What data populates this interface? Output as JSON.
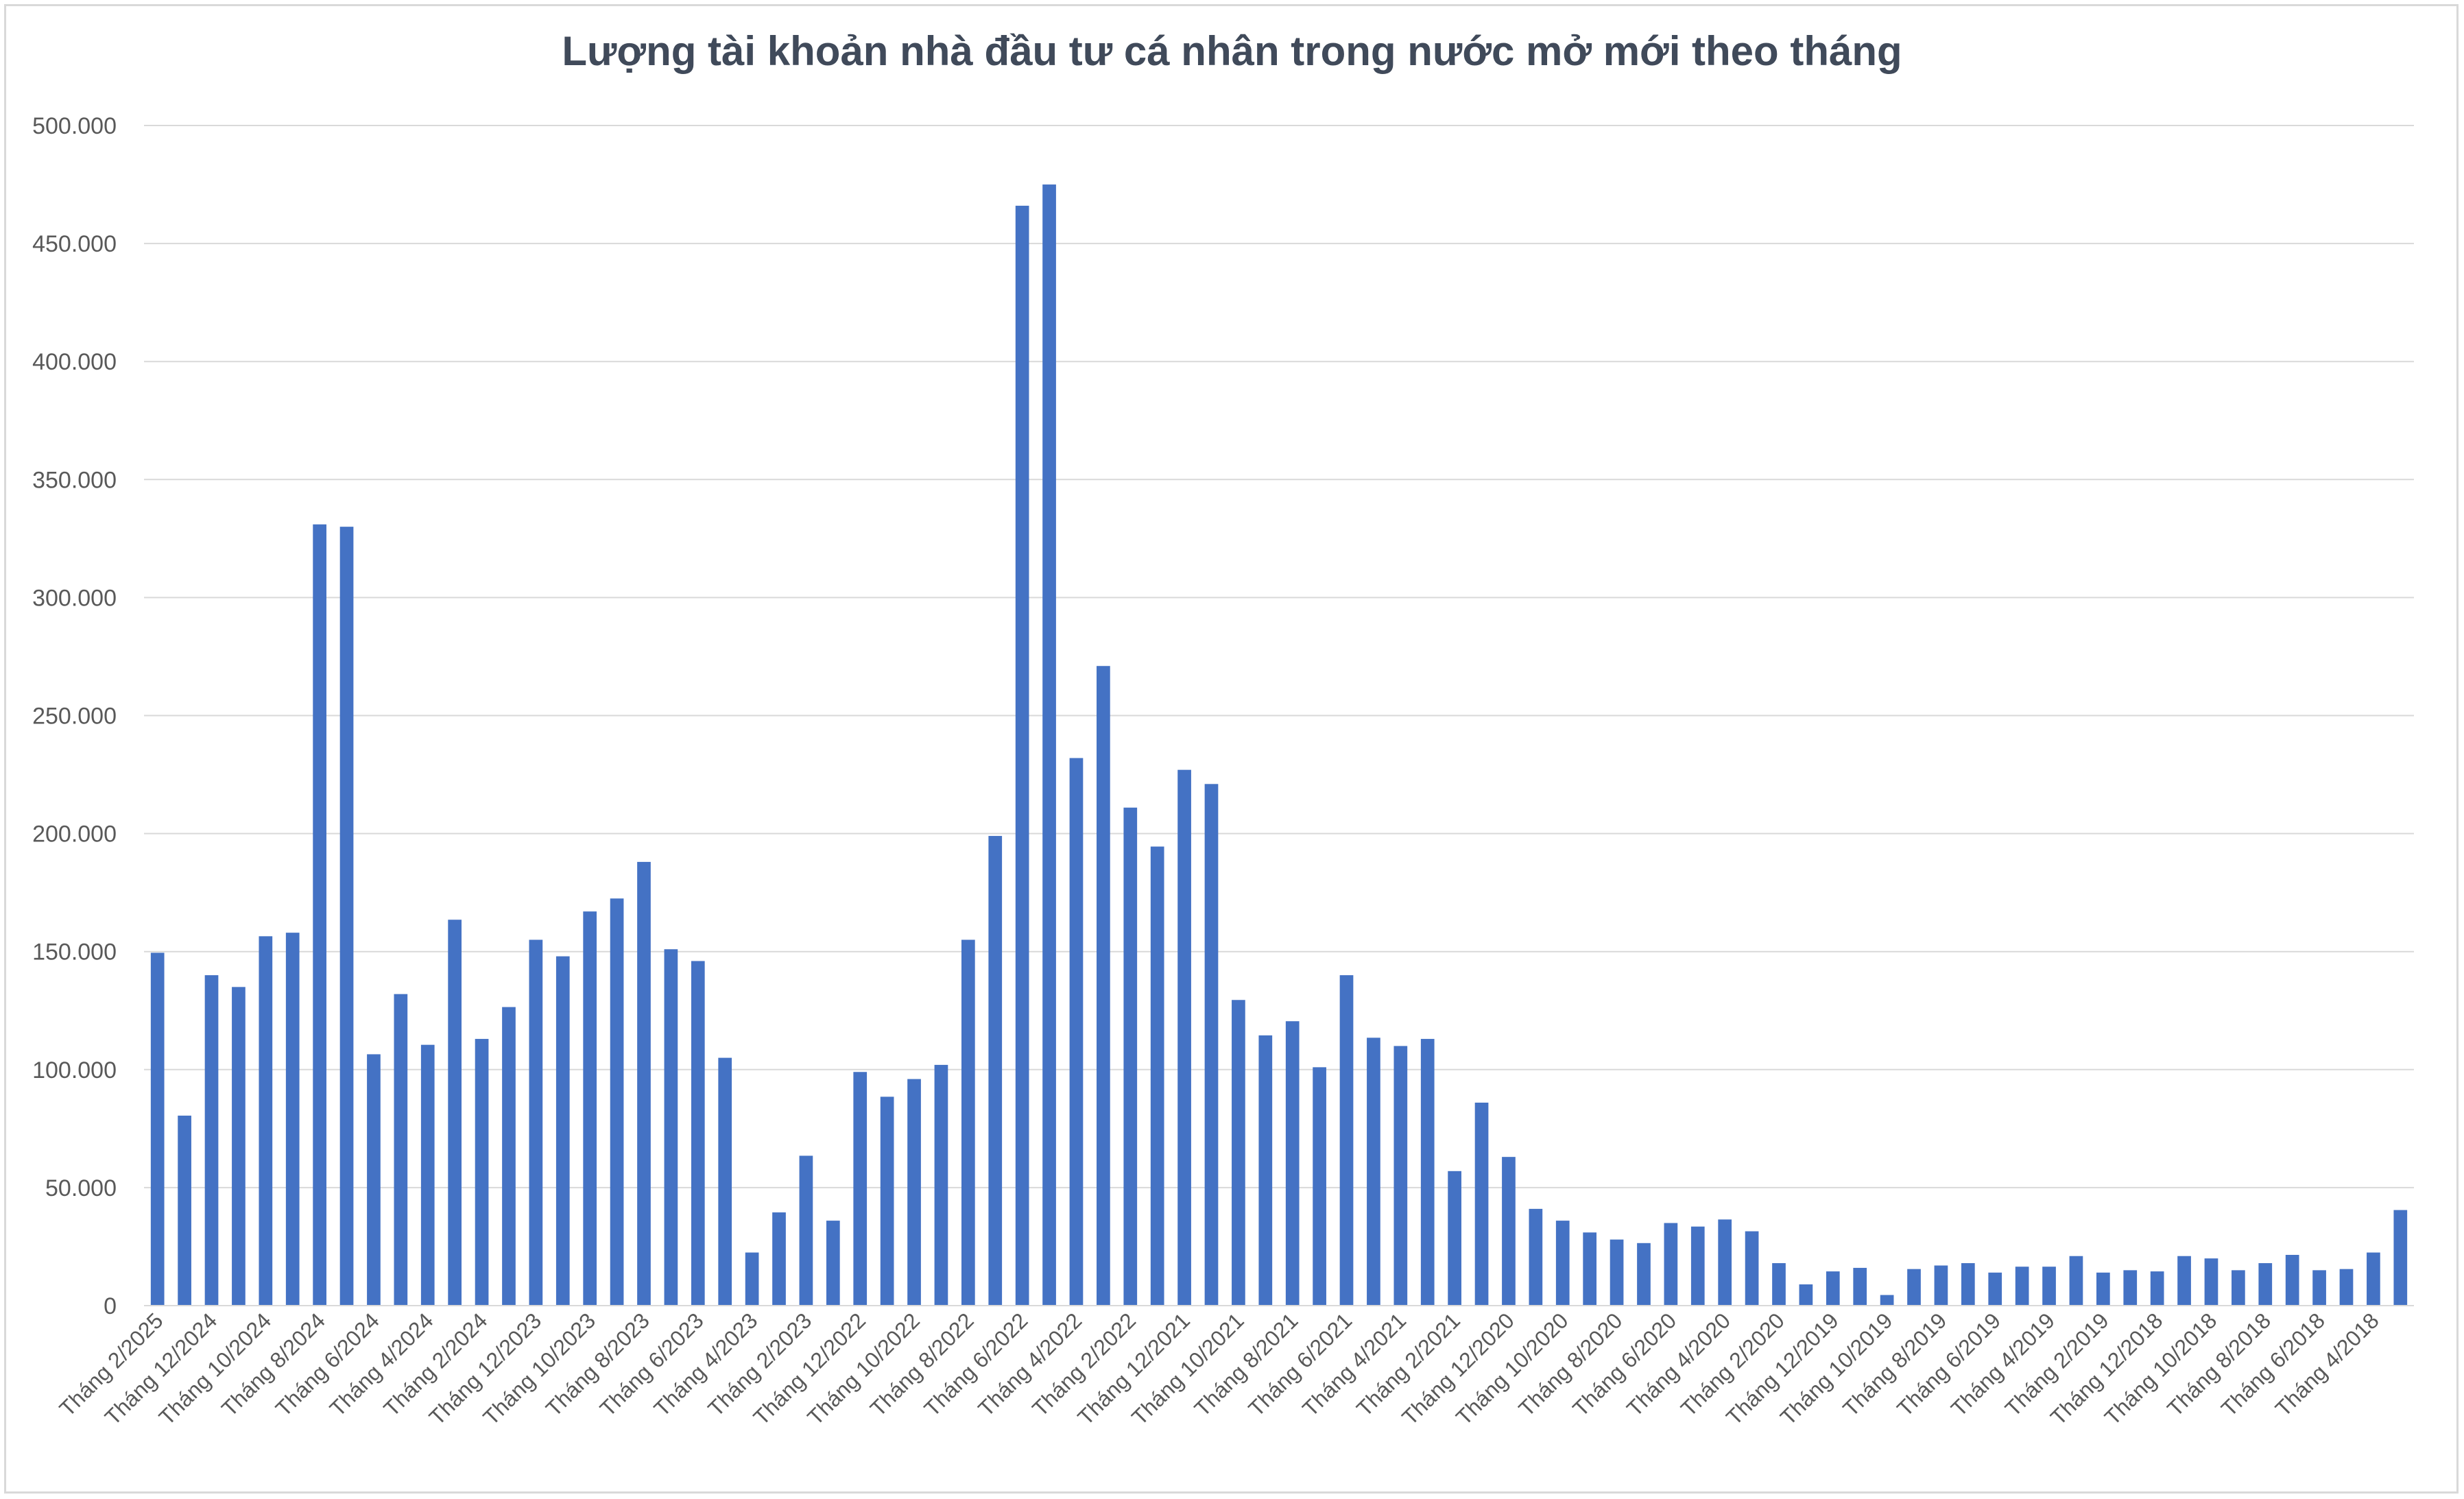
{
  "chart_data": {
    "type": "bar",
    "title": "Lượng tài khoản nhà đầu tư cá nhân trong nước mở mới theo tháng",
    "xlabel": "",
    "ylabel": "",
    "ylim": [
      0,
      500000
    ],
    "yticks": [
      "0",
      "50.000",
      "100.000",
      "150.000",
      "200.000",
      "250.000",
      "300.000",
      "350.000",
      "400.000",
      "450.000",
      "500.000"
    ],
    "grid": true,
    "bar_color": "#4472c4",
    "categories": [
      "Tháng 2/2025",
      "Tháng 1/2025",
      "Tháng 12/2024",
      "Tháng 11/2024",
      "Tháng 10/2024",
      "Tháng 9/2024",
      "Tháng 8/2024",
      "Tháng 7/2024",
      "Tháng 6/2024",
      "Tháng 5/2024",
      "Tháng 4/2024",
      "Tháng 3/2024",
      "Tháng 2/2024",
      "Tháng 1/2024",
      "Tháng 12/2023",
      "Tháng 11/2023",
      "Tháng 10/2023",
      "Tháng 9/2023",
      "Tháng 8/2023",
      "Tháng 7/2023",
      "Tháng 6/2023",
      "Tháng 5/2023",
      "Tháng 4/2023",
      "Tháng 3/2023",
      "Tháng 2/2023",
      "Tháng 1/2023",
      "Tháng 12/2022",
      "Tháng 11/2022",
      "Tháng 10/2022",
      "Tháng 9/2022",
      "Tháng 8/2022",
      "Tháng 7/2022",
      "Tháng 6/2022",
      "Tháng 5/2022",
      "Tháng 4/2022",
      "Tháng 3/2022",
      "Tháng 2/2022",
      "Tháng 1/2022",
      "Tháng 12/2021",
      "Tháng 11/2021",
      "Tháng 10/2021",
      "Tháng 9/2021",
      "Tháng 8/2021",
      "Tháng 7/2021",
      "Tháng 6/2021",
      "Tháng 5/2021",
      "Tháng 4/2021",
      "Tháng 3/2021",
      "Tháng 2/2021",
      "Tháng 1/2021",
      "Tháng 12/2020",
      "Tháng 11/2020",
      "Tháng 10/2020",
      "Tháng 9/2020",
      "Tháng 8/2020",
      "Tháng 7/2020",
      "Tháng 6/2020",
      "Tháng 5/2020",
      "Tháng 4/2020",
      "Tháng 3/2020",
      "Tháng 2/2020",
      "Tháng 1/2020",
      "Tháng 12/2019",
      "Tháng 11/2019",
      "Tháng 10/2019",
      "Tháng 9/2019",
      "Tháng 8/2019",
      "Tháng 7/2019",
      "Tháng 6/2019",
      "Tháng 5/2019",
      "Tháng 4/2019",
      "Tháng 3/2019",
      "Tháng 2/2019",
      "Tháng 1/2019",
      "Tháng 12/2018",
      "Tháng 11/2018",
      "Tháng 10/2018",
      "Tháng 9/2018",
      "Tháng 8/2018",
      "Tháng 7/2018",
      "Tháng 6/2018",
      "Tháng 5/2018",
      "Tháng 4/2018",
      "Tháng 3/2018"
    ],
    "label_every": 2,
    "values": [
      149500,
      80500,
      140000,
      135000,
      156500,
      158000,
      331000,
      330000,
      106500,
      132000,
      110500,
      163500,
      113000,
      126500,
      155000,
      148000,
      167000,
      172500,
      188000,
      151000,
      146000,
      105000,
      22500,
      39500,
      63500,
      36000,
      99000,
      88500,
      96000,
      102000,
      155000,
      199000,
      466000,
      475000,
      232000,
      271000,
      211000,
      194500,
      227000,
      221000,
      129500,
      114500,
      120500,
      101000,
      140000,
      113500,
      110000,
      113000,
      57000,
      86000,
      63000,
      41000,
      36000,
      31000,
      28000,
      26500,
      35000,
      33500,
      36500,
      31500,
      18000,
      9000,
      14500,
      16000,
      4500,
      15500,
      17000,
      18000,
      14000,
      16500,
      16500,
      21000,
      14000,
      15000,
      14500,
      21000,
      20000,
      15000,
      18000,
      21500,
      15000,
      15500,
      22500,
      40500
    ]
  }
}
